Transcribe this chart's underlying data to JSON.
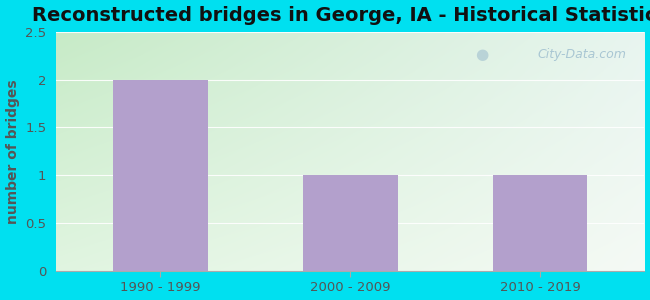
{
  "title": "Reconstructed bridges in George, IA - Historical Statistics",
  "categories": [
    "1990 - 1999",
    "2000 - 2009",
    "2010 - 2019"
  ],
  "values": [
    2,
    1,
    1
  ],
  "bar_color": "#b3a0cc",
  "ylabel": "number of bridges",
  "ylim": [
    0,
    2.5
  ],
  "yticks": [
    0,
    0.5,
    1,
    1.5,
    2,
    2.5
  ],
  "background_outer": "#00e0f0",
  "title_fontsize": 14,
  "ylabel_fontsize": 10,
  "tick_fontsize": 9.5,
  "watermark_text": "City-Data.com",
  "bar_width": 0.5,
  "ylabel_color": "#555555",
  "tick_color": "#555555",
  "title_color": "#111111",
  "grid_color": "#ccddcc",
  "bg_color_topleft": "#d4edda",
  "bg_color_topright": "#eaf5f0",
  "bg_color_bottomleft": "#e8f5e8",
  "bg_color_bottomright": "#f5fbf5"
}
